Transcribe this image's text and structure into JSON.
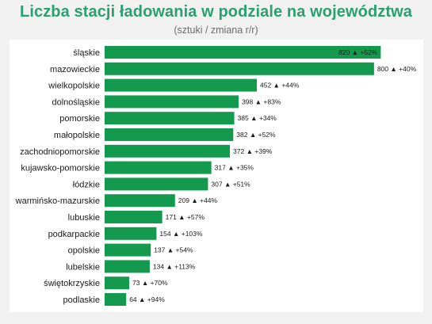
{
  "title": "Liczba stacji ładowania w podziale na województwa",
  "subtitle": "(sztuki / zmiana r/r)",
  "colors": {
    "bar": "#139a4f",
    "title": "#2a9f72",
    "background": "#f1f1f2"
  },
  "chart_data": {
    "type": "bar",
    "orientation": "horizontal",
    "title": "Liczba stacji ładowania w podziale na województwa",
    "subtitle": "(sztuki / zmiana r/r)",
    "categories": [
      "śląskie",
      "mazowieckie",
      "wielkopolskie",
      "dolnośląskie",
      "pomorskie",
      "małopolskie",
      "zachodniopomorskie",
      "kujawsko-pomorskie",
      "łódzkie",
      "warmińsko-mazurskie",
      "lubuskie",
      "podkarpackie",
      "opolskie",
      "lubelskie",
      "świętokrzyskie",
      "podlaskie"
    ],
    "values": [
      820,
      800,
      452,
      398,
      385,
      382,
      372,
      317,
      307,
      209,
      171,
      154,
      137,
      134,
      73,
      64
    ],
    "labels": [
      "820 ▲ +52%",
      "800 ▲ +40%",
      "452 ▲ +44%",
      "398 ▲ +83%",
      "385 ▲ +34%",
      "382 ▲ +52%",
      "372 ▲ +39%",
      "317 ▲ +35%",
      "307 ▲ +51%",
      "209 ▲ +44%",
      "171 ▲ +57%",
      "154 ▲ +103%",
      "137 ▲ +54%",
      "134 ▲ +113%",
      "73 ▲ +70%",
      "64 ▲ +94%"
    ],
    "xlim": [
      0,
      805
    ],
    "grid": false,
    "legend": "none"
  }
}
